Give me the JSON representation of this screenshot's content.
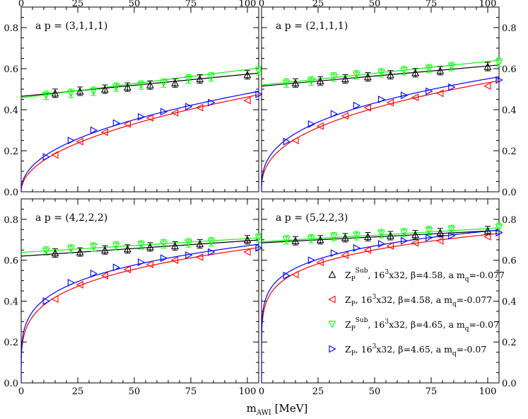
{
  "chart_data": {
    "type": "scatter",
    "xlabel": "m",
    "xlabel_sub": "AWI",
    "xlabel_unit": " [MeV]",
    "xlim": [
      0,
      105
    ],
    "ylim": [
      0,
      0.9
    ],
    "x_ticks": [
      "0",
      "25",
      "50",
      "75",
      "100"
    ],
    "x_tick_values": [
      0,
      25,
      50,
      75,
      100
    ],
    "y_ticks": [
      "0.0",
      "0.2",
      "0.4",
      "0.6",
      "0.8"
    ],
    "y_tick_values": [
      0,
      0.2,
      0.4,
      0.6,
      0.8
    ],
    "y_ticks_left_panels": [
      "0.0",
      "0.2",
      "0.4",
      "0.6",
      "0.8"
    ],
    "grid": false,
    "legend_position": "bottom-right panel, lower right",
    "legend": [
      {
        "marker": "triangle-up",
        "color": "#000000",
        "parts": [
          "Z",
          "P",
          "Sub",
          ", 16",
          "3",
          "x32, β=4.58, a m",
          "q",
          "=-0.077"
        ]
      },
      {
        "marker": "triangle-left",
        "color": "#ff0000",
        "parts": [
          "Z",
          "P",
          "",
          ",   16",
          "3",
          "x32, β=4.58, a m",
          "q",
          "=-0.077"
        ]
      },
      {
        "marker": "triangle-down",
        "color": "#00ff00",
        "parts": [
          "Z",
          "P",
          "Sub",
          ", 16",
          "3",
          "x32, β=4.65, a m",
          "q",
          "=-0.07"
        ]
      },
      {
        "marker": "triangle-right",
        "color": "#0000ff",
        "parts": [
          "Z",
          "P",
          "",
          ",   16",
          "3",
          "x32, β=4.65, a m",
          "q",
          "=-0.07"
        ]
      }
    ],
    "panels": [
      {
        "label": "a p = (3,1,1,1)",
        "series": [
          {
            "marker": "triangle-up",
            "color": "#000000",
            "x": [
              15,
              26,
              37,
              47,
              57,
              68,
              79,
              100
            ],
            "y": [
              0.48,
              0.49,
              0.5,
              0.51,
              0.52,
              0.53,
              0.55,
              0.57
            ],
            "fit": [
              0.465,
              0.00108
            ]
          },
          {
            "marker": "triangle-left",
            "color": "#ff0000",
            "x": [
              15,
              26,
              37,
              47,
              57,
              68,
              79,
              100
            ],
            "y": [
              0.18,
              0.245,
              0.29,
              0.33,
              0.36,
              0.385,
              0.41,
              0.445
            ]
          },
          {
            "marker": "triangle-down",
            "color": "#00ff00",
            "x": [
              11,
              22,
              32,
              42,
              53,
              63,
              74,
              84,
              105
            ],
            "y": [
              0.47,
              0.48,
              0.49,
              0.51,
              0.52,
              0.53,
              0.55,
              0.56,
              0.59
            ],
            "fit": [
              0.458,
              0.00138
            ]
          },
          {
            "marker": "triangle-right",
            "color": "#0000ff",
            "x": [
              11,
              22,
              32,
              42,
              53,
              63,
              74,
              84,
              105
            ],
            "y": [
              0.17,
              0.25,
              0.3,
              0.335,
              0.365,
              0.39,
              0.415,
              0.435,
              0.475
            ]
          }
        ]
      },
      {
        "label": "a p = (2,1,1,1)",
        "series": [
          {
            "marker": "triangle-up",
            "color": "#000000",
            "x": [
              15,
              26,
              37,
              47,
              57,
              68,
              79,
              100
            ],
            "y": [
              0.53,
              0.54,
              0.55,
              0.56,
              0.57,
              0.58,
              0.59,
              0.61
            ],
            "fit": [
              0.515,
              0.00098
            ]
          },
          {
            "marker": "triangle-left",
            "color": "#ff0000",
            "x": [
              15,
              26,
              37,
              47,
              57,
              68,
              79,
              100
            ],
            "y": [
              0.25,
              0.32,
              0.37,
              0.41,
              0.435,
              0.46,
              0.48,
              0.515
            ]
          },
          {
            "marker": "triangle-down",
            "color": "#00ff00",
            "x": [
              11,
              22,
              32,
              42,
              53,
              63,
              74,
              84,
              105
            ],
            "y": [
              0.53,
              0.54,
              0.56,
              0.57,
              0.58,
              0.59,
              0.6,
              0.61,
              0.63
            ],
            "fit": [
              0.52,
              0.00115
            ]
          },
          {
            "marker": "triangle-right",
            "color": "#0000ff",
            "x": [
              11,
              22,
              32,
              42,
              53,
              63,
              74,
              84,
              105
            ],
            "y": [
              0.245,
              0.33,
              0.38,
              0.42,
              0.45,
              0.47,
              0.49,
              0.51,
              0.545
            ]
          }
        ]
      },
      {
        "label": "a p = (4,2,2,2)",
        "series": [
          {
            "marker": "triangle-up",
            "color": "#000000",
            "x": [
              15,
              26,
              37,
              47,
              57,
              68,
              79,
              100
            ],
            "y": [
              0.635,
              0.64,
              0.65,
              0.655,
              0.665,
              0.67,
              0.68,
              0.7
            ],
            "fit": [
              0.62,
              0.00075
            ]
          },
          {
            "marker": "triangle-left",
            "color": "#ff0000",
            "x": [
              15,
              26,
              37,
              47,
              57,
              68,
              79,
              100
            ],
            "y": [
              0.41,
              0.48,
              0.525,
              0.555,
              0.58,
              0.6,
              0.615,
              0.64
            ]
          },
          {
            "marker": "triangle-down",
            "color": "#00ff00",
            "x": [
              11,
              22,
              32,
              42,
              53,
              63,
              74,
              84,
              105
            ],
            "y": [
              0.645,
              0.655,
              0.665,
              0.67,
              0.675,
              0.68,
              0.685,
              0.69,
              0.71
            ],
            "fit": [
              0.638,
              0.00068
            ]
          },
          {
            "marker": "triangle-right",
            "color": "#0000ff",
            "x": [
              11,
              22,
              32,
              42,
              53,
              63,
              74,
              84,
              105
            ],
            "y": [
              0.4,
              0.49,
              0.535,
              0.565,
              0.59,
              0.61,
              0.625,
              0.64,
              0.66
            ]
          }
        ]
      },
      {
        "label": "a p = (5,2,2,3)",
        "series": [
          {
            "marker": "triangle-up",
            "color": "#000000",
            "x": [
              15,
              26,
              37,
              47,
              57,
              68,
              79,
              100
            ],
            "y": [
              0.695,
              0.7,
              0.71,
              0.715,
              0.72,
              0.725,
              0.735,
              0.745
            ],
            "fit": [
              0.685,
              0.00058
            ]
          },
          {
            "marker": "triangle-left",
            "color": "#ff0000",
            "x": [
              15,
              26,
              37,
              47,
              57,
              68,
              79,
              100
            ],
            "y": [
              0.53,
              0.59,
              0.625,
              0.65,
              0.67,
              0.685,
              0.695,
              0.715
            ]
          },
          {
            "marker": "triangle-down",
            "color": "#00ff00",
            "x": [
              11,
              22,
              32,
              42,
              53,
              63,
              74,
              84,
              105
            ],
            "y": [
              0.7,
              0.705,
              0.715,
              0.72,
              0.73,
              0.735,
              0.745,
              0.75,
              0.76
            ],
            "fit": [
              0.69,
              0.00065
            ]
          },
          {
            "marker": "triangle-right",
            "color": "#0000ff",
            "x": [
              11,
              22,
              32,
              42,
              53,
              63,
              74,
              84,
              105
            ],
            "y": [
              0.525,
              0.6,
              0.635,
              0.66,
              0.68,
              0.695,
              0.71,
              0.72,
              0.735
            ]
          }
        ]
      }
    ]
  }
}
